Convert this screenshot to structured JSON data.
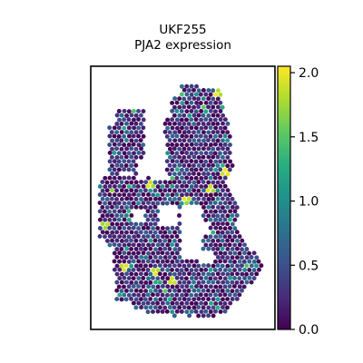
{
  "chart_data": {
    "type": "heatmap",
    "subtype": "spatial-spot-map",
    "title_line1": "UKF255",
    "title_line2": "PJA2 expression",
    "colormap": "viridis",
    "colorbar": {
      "range": [
        0.0,
        2.05
      ],
      "ticks": [
        0.0,
        0.5,
        1.0,
        1.5,
        2.0
      ],
      "tick_labels": [
        "0.0",
        "0.5",
        "1.0",
        "1.5",
        "2.0"
      ]
    },
    "value_distribution": {
      "typical_range": [
        0.0,
        0.8
      ],
      "max": 2.05,
      "hotspots_above_1_5": 9
    },
    "frame": true,
    "axes_ticks": false
  }
}
